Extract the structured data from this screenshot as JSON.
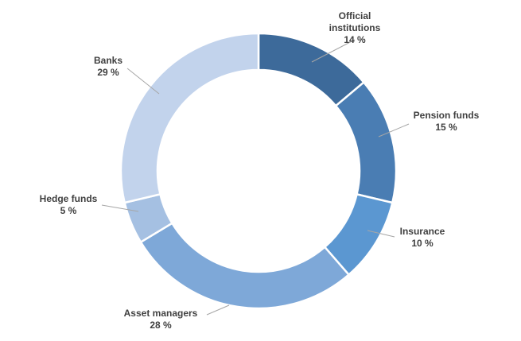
{
  "chart_data": {
    "type": "pie",
    "title": "",
    "variant": "donut",
    "slices": [
      {
        "label": "Official institutions",
        "label_lines": [
          "Official",
          "institutions"
        ],
        "value": 14,
        "value_text": "14 %",
        "color": "#3d6a9a"
      },
      {
        "label": "Pension funds",
        "label_lines": [
          "Pension funds"
        ],
        "value": 15,
        "value_text": "15 %",
        "color": "#4a7db3"
      },
      {
        "label": "Insurance",
        "label_lines": [
          "Insurance"
        ],
        "value": 10,
        "value_text": "10 %",
        "color": "#5b97d1"
      },
      {
        "label": "Asset managers",
        "label_lines": [
          "Asset managers"
        ],
        "value": 28,
        "value_text": "28 %",
        "color": "#7ea8d8"
      },
      {
        "label": "Hedge funds",
        "label_lines": [
          "Hedge funds"
        ],
        "value": 5,
        "value_text": "5 %",
        "color": "#a5c0e2"
      },
      {
        "label": "Banks",
        "label_lines": [
          "Banks"
        ],
        "value": 29,
        "value_text": "29 %",
        "color": "#c2d3ec"
      }
    ]
  }
}
